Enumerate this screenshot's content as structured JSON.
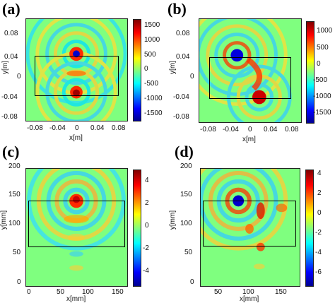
{
  "panels": [
    {
      "label": "(a)",
      "xlabel": "x[m]",
      "ylabel": "y[m]",
      "xticks": [
        "-0.08",
        "-0.04",
        "0",
        "0.04",
        "0.08"
      ],
      "yticks": [
        "0.08",
        "0.04",
        "0",
        "-0.04",
        "-0.08"
      ],
      "cbar_ticks": [
        "1500",
        "1000",
        "500",
        "0",
        "-500",
        "-1000",
        "-1500"
      ]
    },
    {
      "label": "(b)",
      "xlabel": "x[m]",
      "ylabel": "y[m]",
      "xticks": [
        "-0.08",
        "-0.04",
        "0",
        "0.04",
        "0.08"
      ],
      "yticks": [
        "0.08",
        "0.04",
        "0",
        "-0.04",
        "-0.08"
      ],
      "cbar_ticks": [
        "1000",
        "500",
        "0",
        "-500",
        "-1000",
        "-1500"
      ]
    },
    {
      "label": "(c)",
      "xlabel": "x[mm]",
      "ylabel": "y[mm]",
      "xticks": [
        "0",
        "50",
        "100",
        "150"
      ],
      "yticks": [
        "200",
        "150",
        "100",
        "50",
        "0"
      ],
      "cbar_ticks": [
        "4",
        "2",
        "0",
        "-2",
        "-4"
      ]
    },
    {
      "label": "(d)",
      "xlabel": "x[mm]",
      "ylabel": "y[mm]",
      "xticks": [
        "50",
        "100",
        "150"
      ],
      "yticks": [
        "200",
        "150",
        "100",
        "50",
        "0"
      ],
      "cbar_ticks": [
        "4",
        "2",
        "0",
        "-2",
        "-4",
        "-6"
      ]
    }
  ],
  "colors": {
    "colormap": [
      "#00008f",
      "#0000ff",
      "#00ffff",
      "#ffff00",
      "#ff0000",
      "#800000"
    ],
    "background": "#ffffff"
  }
}
